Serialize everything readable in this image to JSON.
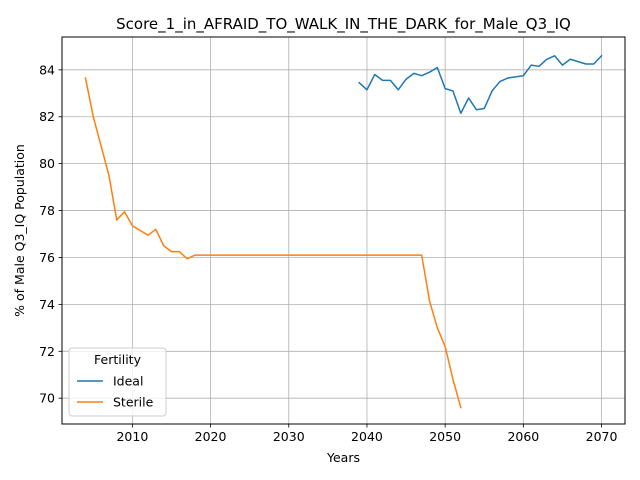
{
  "chart_data": {
    "type": "line",
    "title": "Score_1_in_AFRAID_TO_WALK_IN_THE_DARK_for_Male_Q3_IQ",
    "xlabel": "Years",
    "ylabel": "% of Male Q3_IQ Population",
    "xlim": [
      2001,
      2073
    ],
    "ylim": [
      68.9,
      85.4
    ],
    "xticks": [
      2010,
      2020,
      2030,
      2040,
      2050,
      2060,
      2070
    ],
    "yticks": [
      70,
      72,
      74,
      76,
      78,
      80,
      82,
      84
    ],
    "grid": true,
    "legend": {
      "title": "Fertility",
      "placement": "lower-left"
    },
    "series": [
      {
        "name": "Ideal",
        "color": "#1f77b4",
        "x": [
          2039,
          2040,
          2041,
          2042,
          2043,
          2044,
          2045,
          2046,
          2047,
          2048,
          2049,
          2050,
          2051,
          2052,
          2053,
          2054,
          2055,
          2056,
          2057,
          2058,
          2059,
          2060,
          2061,
          2062,
          2063,
          2064,
          2065,
          2066,
          2067,
          2068,
          2069,
          2070
        ],
        "y": [
          83.45,
          83.15,
          83.8,
          83.55,
          83.55,
          83.15,
          83.6,
          83.85,
          83.75,
          83.9,
          84.1,
          83.2,
          83.1,
          82.15,
          82.8,
          82.3,
          82.35,
          83.1,
          83.5,
          83.65,
          83.7,
          83.75,
          84.2,
          84.15,
          84.45,
          84.6,
          84.2,
          84.45,
          84.35,
          84.25,
          84.25,
          84.6
        ]
      },
      {
        "name": "Sterile",
        "color": "#ff7f0e",
        "x": [
          2004,
          2005,
          2006,
          2007,
          2008,
          2009,
          2010,
          2011,
          2012,
          2013,
          2014,
          2015,
          2016,
          2017,
          2018,
          2019,
          2020,
          2025,
          2030,
          2035,
          2040,
          2045,
          2047,
          2048,
          2049,
          2050,
          2051,
          2052
        ],
        "y": [
          83.65,
          82.0,
          80.75,
          79.5,
          77.6,
          77.95,
          77.35,
          77.15,
          76.95,
          77.2,
          76.5,
          76.25,
          76.25,
          75.95,
          76.1,
          76.1,
          76.1,
          76.1,
          76.1,
          76.1,
          76.1,
          76.1,
          76.1,
          74.15,
          73.0,
          72.2,
          70.8,
          69.6
        ]
      }
    ]
  }
}
